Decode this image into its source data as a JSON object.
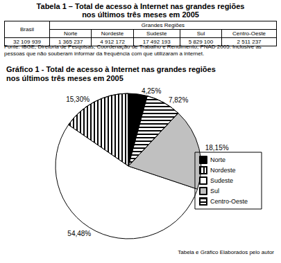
{
  "table": {
    "title": "Tabela 1 – Total de acesso à Internet nas grandes regiões\nnos últimos três meses em 2005",
    "header": {
      "first": "Brasil",
      "group": "Grandes Regiões",
      "columns": [
        "Norte",
        "Nordeste",
        "Sudeste",
        "Sul",
        "Centro-Oeste"
      ]
    },
    "rows": [
      [
        "32 109 939",
        "1 365 237",
        "4 912 172",
        "17 492 193",
        "5 829 100",
        "2 511 237"
      ]
    ],
    "source": "Fonte: IBGE, Diretoria de Pesquisas, Coordenação de Trabalho e Rendimento, PNAD 2005. Inclusive as pessoas que não souberam informar da frequência com que utilizaram a internet."
  },
  "chart_data": {
    "type": "pie",
    "title": "Gráfico 1 - Total de acesso à Internet nas grandes regiões\nnos últimos três meses em 2005",
    "categories": [
      "Norte",
      "Nordeste",
      "Sudeste",
      "Sul",
      "Centro-Oeste"
    ],
    "values": [
      4.25,
      15.3,
      54.48,
      18.15,
      7.82
    ],
    "value_labels": [
      "4,25%",
      "15,30%",
      "54,48%",
      "18,15%",
      "7,82%"
    ],
    "colors": [
      "#000000",
      "#ffffff",
      "#ffffff",
      "#c0c0c0",
      "#ffffff"
    ],
    "data_labels": true,
    "legend": "right"
  },
  "note": "Tabela e Gráfico Elaborados pelo autor"
}
